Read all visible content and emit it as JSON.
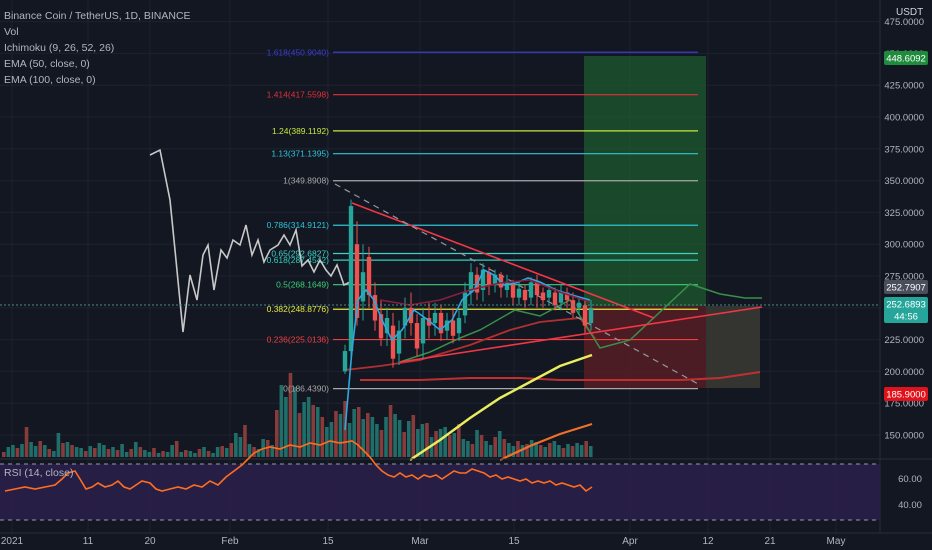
{
  "legend": {
    "title": "Binance Coin / TetherUS, 1D, BINANCE",
    "vol": "Vol",
    "ichimoku": "Ichimoku (9, 26, 52, 26)",
    "ema50": "EMA (50, close, 0)",
    "ema100": "EMA (100, close, 0)"
  },
  "axis": {
    "currency": "USDT"
  },
  "rsi": {
    "label": "RSI (14, close)",
    "ticks": [
      "60.00",
      "40.00"
    ]
  },
  "colors": {
    "background": "#131722",
    "up": "#26a69a",
    "down": "#ef5350",
    "grid": "#1e2230",
    "triangle": "#f23645",
    "ema50": "#e8ee5e",
    "ema100": "#f0702a",
    "chikou": "#c8c8c8",
    "rsi": "#ff6d1f"
  },
  "chart_data": {
    "type": "candlestick",
    "y_ticks": [
      "475.0000",
      "450.0000",
      "425.0000",
      "400.0000",
      "375.0000",
      "350.0000",
      "325.0000",
      "300.0000",
      "275.0000",
      "250.0000",
      "225.0000",
      "200.0000",
      "175.0000",
      "150.0000"
    ],
    "x_ticks": [
      "2021",
      "11",
      "20",
      "Feb",
      "15",
      "Mar",
      "15",
      "Apr",
      "12",
      "21",
      "May"
    ],
    "price_labels": [
      {
        "text": "448.6092",
        "color": "#1e8c3c"
      },
      {
        "text": "252.7907",
        "color": "#4a4e5a"
      },
      {
        "text": "252.6893",
        "color": "#26a69a"
      },
      {
        "text": "44:56",
        "color": "#26a69a"
      },
      {
        "text": "185.9000",
        "color": "#e0121b"
      }
    ],
    "fib_levels": [
      {
        "label": "1.618(450.9040)",
        "value": 450.904,
        "color": "#3a3fd0"
      },
      {
        "label": "1.414(417.5598)",
        "value": 417.5598,
        "color": "#e0303a"
      },
      {
        "label": "1.24(389.1192)",
        "value": 389.1192,
        "color": "#c8e63c"
      },
      {
        "label": "1.13(371.1395)",
        "value": 371.1395,
        "color": "#2ec4d8"
      },
      {
        "label": "1(349.8908)",
        "value": 349.8908,
        "color": "#a8a8a8"
      },
      {
        "label": "0.786(314.9121)",
        "value": 314.9121,
        "color": "#2ec4d8"
      },
      {
        "label": "0.65(292.6827)",
        "value": 292.6827,
        "color": "#3fd2c6"
      },
      {
        "label": "0.618(287.4542)",
        "value": 287.4542,
        "color": "#2ed0c0"
      },
      {
        "label": "0.5(268.1649)",
        "value": 268.1649,
        "color": "#3bd07a"
      },
      {
        "label": "0.382(248.8776)",
        "value": 248.8776,
        "color": "#e8e83a"
      },
      {
        "label": "0.236(225.0136)",
        "value": 225.0136,
        "color": "#ef4040"
      },
      {
        "label": "0(186.4390)",
        "value": 186.439,
        "color": "#a8a8a8"
      }
    ],
    "chikou_line": [
      [
        150,
        155
      ],
      [
        160,
        150
      ],
      [
        170,
        200
      ],
      [
        175,
        250
      ],
      [
        183,
        332
      ],
      [
        190,
        275
      ],
      [
        197,
        300
      ],
      [
        203,
        255
      ],
      [
        208,
        245
      ],
      [
        214,
        290
      ],
      [
        221,
        250
      ],
      [
        227,
        258
      ],
      [
        233,
        240
      ],
      [
        240,
        245
      ],
      [
        246,
        225
      ],
      [
        252,
        255
      ],
      [
        258,
        240
      ],
      [
        264,
        262
      ],
      [
        270,
        250
      ],
      [
        278,
        245
      ],
      [
        284,
        235
      ],
      [
        290,
        245
      ],
      [
        296,
        230
      ],
      [
        302,
        266
      ],
      [
        308,
        260
      ],
      [
        314,
        272
      ],
      [
        320,
        260
      ],
      [
        326,
        270
      ],
      [
        331,
        276
      ],
      [
        337,
        265
      ],
      [
        344,
        285
      ],
      [
        350,
        282
      ]
    ],
    "candles": [
      [
        345,
        200,
        216,
        198,
        221
      ],
      [
        351,
        216,
        330,
        210,
        335
      ],
      [
        357,
        300,
        242,
        236,
        318
      ],
      [
        363,
        255,
        278,
        240,
        300
      ],
      [
        369,
        290,
        260,
        250,
        298
      ],
      [
        375,
        260,
        240,
        232,
        270
      ],
      [
        381,
        245,
        226,
        220,
        256
      ],
      [
        387,
        230,
        242,
        220,
        250
      ],
      [
        393,
        236,
        210,
        203,
        246
      ],
      [
        399,
        214,
        232,
        205,
        240
      ],
      [
        405,
        236,
        250,
        226,
        258
      ],
      [
        411,
        250,
        238,
        228,
        262
      ],
      [
        417,
        238,
        218,
        212,
        245
      ],
      [
        423,
        222,
        242,
        210,
        250
      ],
      [
        429,
        242,
        236,
        226,
        254
      ],
      [
        435,
        238,
        246,
        228,
        254
      ],
      [
        441,
        246,
        230,
        224,
        252
      ],
      [
        447,
        232,
        240,
        225,
        246
      ],
      [
        453,
        240,
        228,
        222,
        250
      ],
      [
        459,
        230,
        242,
        224,
        248
      ],
      [
        465,
        244,
        262,
        238,
        270
      ],
      [
        471,
        262,
        278,
        252,
        285
      ],
      [
        477,
        276,
        262,
        256,
        282
      ],
      [
        483,
        264,
        280,
        255,
        285
      ],
      [
        489,
        278,
        268,
        260,
        282
      ],
      [
        495,
        268,
        276,
        262,
        280
      ],
      [
        501,
        276,
        266,
        258,
        278
      ],
      [
        507,
        264,
        270,
        258,
        276
      ],
      [
        513,
        268,
        258,
        252,
        272
      ],
      [
        519,
        258,
        265,
        252,
        270
      ],
      [
        525,
        264,
        256,
        250,
        268
      ],
      [
        531,
        258,
        270,
        252,
        274
      ],
      [
        537,
        270,
        260,
        250,
        276
      ],
      [
        543,
        262,
        256,
        250,
        266
      ],
      [
        549,
        258,
        264,
        252,
        268
      ],
      [
        555,
        262,
        252,
        248,
        266
      ],
      [
        561,
        254,
        262,
        248,
        268
      ],
      [
        567,
        262,
        256,
        250,
        266
      ],
      [
        573,
        256,
        246,
        242,
        262
      ],
      [
        579,
        250,
        254,
        244,
        258
      ],
      [
        585,
        252,
        236,
        230,
        256
      ],
      [
        591,
        238,
        250,
        232,
        256
      ]
    ],
    "volume_heights": [
      5,
      10,
      12,
      9,
      13,
      30,
      15,
      11,
      16,
      12,
      8,
      6,
      24,
      14,
      15,
      12,
      10,
      9,
      6,
      11,
      9,
      14,
      12,
      8,
      10,
      7,
      13,
      5,
      8,
      15,
      10,
      7,
      5,
      9,
      4,
      6,
      5,
      12,
      16,
      5,
      7,
      6,
      4,
      8,
      10,
      6,
      4,
      10,
      11,
      9,
      14,
      24,
      20,
      32,
      13,
      10,
      8,
      18,
      17,
      12,
      47,
      72,
      60,
      84,
      70,
      44,
      55,
      60,
      52,
      50,
      40,
      30,
      35,
      46,
      43,
      56,
      34,
      48,
      50,
      38,
      44,
      40,
      33,
      27,
      40,
      52,
      43,
      37,
      25,
      36,
      42,
      28,
      33,
      34,
      20,
      26,
      28,
      30,
      22,
      24,
      33,
      18,
      16,
      13,
      27,
      22,
      16,
      12,
      20,
      26,
      18,
      14,
      11,
      16,
      12,
      13,
      17,
      15,
      12,
      10,
      14,
      16,
      12,
      9,
      13,
      11,
      14,
      12,
      16,
      11
    ],
    "rsi_line": [
      [
        5,
        90
      ],
      [
        15,
        88
      ],
      [
        25,
        86
      ],
      [
        35,
        88
      ],
      [
        45,
        86
      ],
      [
        55,
        84
      ],
      [
        62,
        78
      ],
      [
        68,
        72
      ],
      [
        75,
        70
      ],
      [
        80,
        78
      ],
      [
        86,
        88
      ],
      [
        92,
        86
      ],
      [
        98,
        82
      ],
      [
        105,
        86
      ],
      [
        112,
        84
      ],
      [
        118,
        80
      ],
      [
        124,
        86
      ],
      [
        130,
        88
      ],
      [
        136,
        84
      ],
      [
        142,
        80
      ],
      [
        150,
        82
      ],
      [
        156,
        88
      ],
      [
        162,
        90
      ],
      [
        170,
        88
      ],
      [
        178,
        86
      ],
      [
        186,
        88
      ],
      [
        194,
        84
      ],
      [
        202,
        86
      ],
      [
        210,
        80
      ],
      [
        218,
        84
      ],
      [
        226,
        76
      ],
      [
        234,
        70
      ],
      [
        242,
        64
      ],
      [
        248,
        58
      ],
      [
        254,
        52
      ],
      [
        262,
        48
      ],
      [
        270,
        46
      ],
      [
        280,
        48
      ],
      [
        290,
        44
      ],
      [
        300,
        46
      ],
      [
        310,
        42
      ],
      [
        320,
        44
      ],
      [
        330,
        40
      ],
      [
        340,
        42
      ],
      [
        352,
        40
      ],
      [
        358,
        44
      ],
      [
        364,
        50
      ],
      [
        370,
        56
      ],
      [
        376,
        64
      ],
      [
        382,
        70
      ],
      [
        388,
        74
      ],
      [
        394,
        76
      ],
      [
        400,
        72
      ],
      [
        406,
        76
      ],
      [
        412,
        74
      ],
      [
        418,
        78
      ],
      [
        424,
        74
      ],
      [
        430,
        76
      ],
      [
        436,
        74
      ],
      [
        442,
        78
      ],
      [
        448,
        74
      ],
      [
        454,
        70
      ],
      [
        460,
        72
      ],
      [
        466,
        72
      ],
      [
        472,
        68
      ],
      [
        478,
        70
      ],
      [
        484,
        72
      ],
      [
        490,
        76
      ],
      [
        496,
        74
      ],
      [
        502,
        78
      ],
      [
        508,
        76
      ],
      [
        514,
        78
      ],
      [
        520,
        80
      ],
      [
        526,
        78
      ],
      [
        532,
        82
      ],
      [
        538,
        80
      ],
      [
        544,
        82
      ],
      [
        550,
        80
      ],
      [
        556,
        84
      ],
      [
        562,
        82
      ],
      [
        568,
        84
      ],
      [
        574,
        86
      ],
      [
        580,
        84
      ],
      [
        586,
        90
      ],
      [
        592,
        86
      ]
    ]
  }
}
